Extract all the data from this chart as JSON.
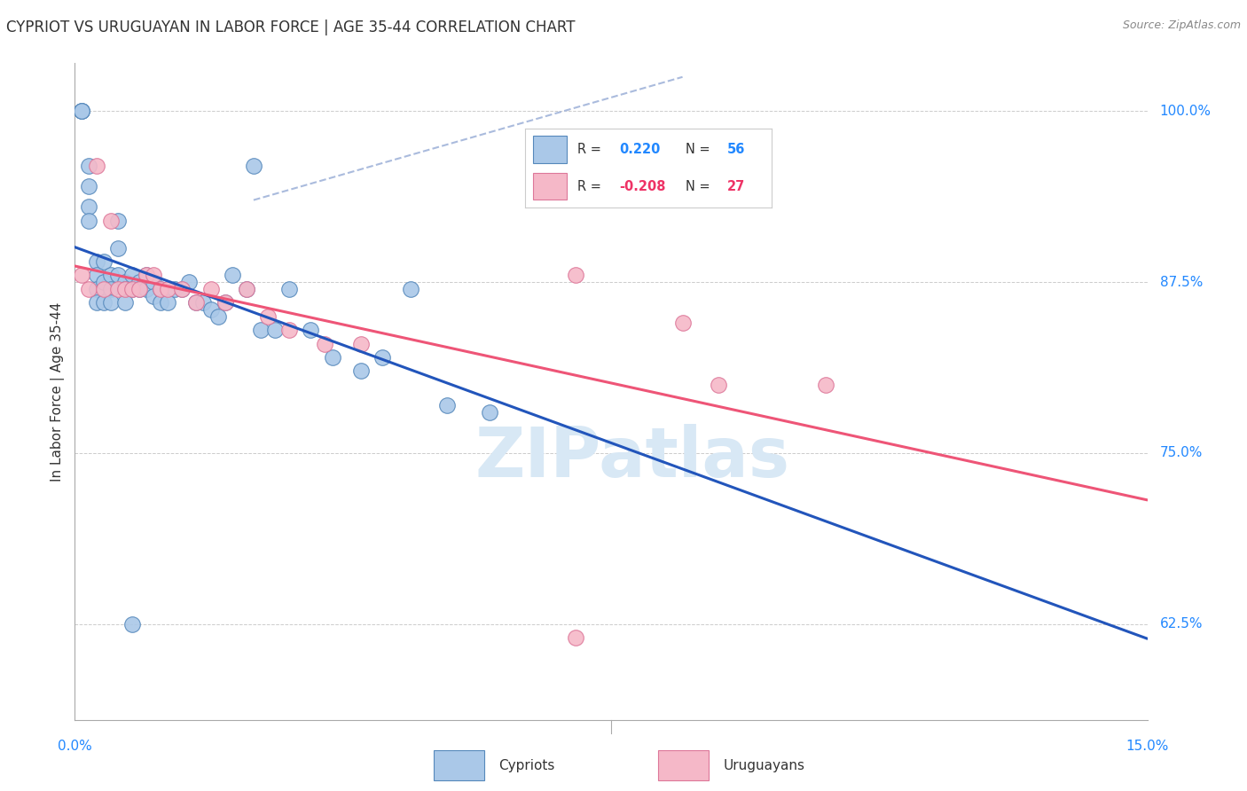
{
  "title": "CYPRIOT VS URUGUAYAN IN LABOR FORCE | AGE 35-44 CORRELATION CHART",
  "source": "Source: ZipAtlas.com",
  "ylabel": "In Labor Force | Age 35-44",
  "ytick_labels": [
    "62.5%",
    "75.0%",
    "87.5%",
    "100.0%"
  ],
  "ytick_values": [
    0.625,
    0.75,
    0.875,
    1.0
  ],
  "xlim": [
    0.0,
    0.15
  ],
  "ylim": [
    0.555,
    1.035
  ],
  "background_color": "#ffffff",
  "grid_color": "#cccccc",
  "cypriot_color": "#aac8e8",
  "uruguayan_color": "#f5b8c8",
  "cypriot_edge": "#5588bb",
  "uruguayan_edge": "#dd7799",
  "trend_blue": "#2255bb",
  "trend_pink": "#ee5577",
  "trend_blue_dashed": "#aabbdd",
  "legend_R_blue": "#2288ff",
  "legend_R_pink": "#ee3366",
  "R_cypriot": "0.220",
  "N_cypriot": "56",
  "R_uruguayan": "-0.208",
  "N_uruguayan": "27",
  "cypriot_x": [
    0.001,
    0.001,
    0.001,
    0.002,
    0.002,
    0.002,
    0.002,
    0.003,
    0.003,
    0.003,
    0.003,
    0.004,
    0.004,
    0.004,
    0.005,
    0.005,
    0.005,
    0.006,
    0.006,
    0.006,
    0.007,
    0.007,
    0.007,
    0.008,
    0.008,
    0.009,
    0.009,
    0.01,
    0.01,
    0.011,
    0.011,
    0.012,
    0.012,
    0.013,
    0.014,
    0.015,
    0.016,
    0.017,
    0.018,
    0.019,
    0.02,
    0.021,
    0.022,
    0.024,
    0.026,
    0.028,
    0.03,
    0.033,
    0.036,
    0.04,
    0.043,
    0.047,
    0.052,
    0.058,
    0.008,
    0.025
  ],
  "cypriot_y": [
    1.0,
    1.0,
    1.0,
    0.96,
    0.945,
    0.93,
    0.92,
    0.89,
    0.88,
    0.87,
    0.86,
    0.89,
    0.875,
    0.86,
    0.88,
    0.87,
    0.86,
    0.92,
    0.9,
    0.88,
    0.875,
    0.87,
    0.86,
    0.88,
    0.87,
    0.875,
    0.87,
    0.88,
    0.87,
    0.875,
    0.865,
    0.87,
    0.86,
    0.86,
    0.87,
    0.87,
    0.875,
    0.86,
    0.86,
    0.855,
    0.85,
    0.86,
    0.88,
    0.87,
    0.84,
    0.84,
    0.87,
    0.84,
    0.82,
    0.81,
    0.82,
    0.87,
    0.785,
    0.78,
    0.625,
    0.96
  ],
  "uruguayan_x": [
    0.001,
    0.002,
    0.003,
    0.004,
    0.005,
    0.006,
    0.007,
    0.008,
    0.009,
    0.01,
    0.011,
    0.012,
    0.013,
    0.015,
    0.017,
    0.019,
    0.021,
    0.024,
    0.027,
    0.03,
    0.035,
    0.04,
    0.07,
    0.085,
    0.09,
    0.105,
    0.07
  ],
  "uruguayan_y": [
    0.88,
    0.87,
    0.96,
    0.87,
    0.92,
    0.87,
    0.87,
    0.87,
    0.87,
    0.88,
    0.88,
    0.87,
    0.87,
    0.87,
    0.86,
    0.87,
    0.86,
    0.87,
    0.85,
    0.84,
    0.83,
    0.83,
    0.88,
    0.845,
    0.8,
    0.8,
    0.615
  ],
  "watermark_text": "ZIPatlas",
  "watermark_color": "#d8e8f5"
}
